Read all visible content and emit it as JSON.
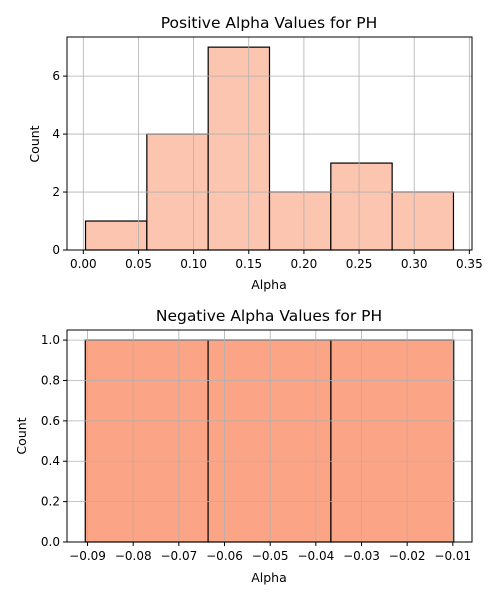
{
  "chart_data": [
    {
      "type": "bar",
      "title": "Positive Alpha Values for PH",
      "xlabel": "Alpha",
      "ylabel": "Count",
      "bin_edges": [
        0.002,
        0.0576,
        0.1132,
        0.1688,
        0.2244,
        0.28,
        0.3356
      ],
      "values": [
        1,
        4,
        7,
        2,
        3,
        2
      ],
      "xlim": [
        -0.0148,
        0.3524
      ],
      "ylim": [
        0,
        7.35
      ],
      "xticks": [
        0.0,
        0.05,
        0.1,
        0.15,
        0.2,
        0.25,
        0.3,
        0.35
      ],
      "xtick_labels": [
        "0.00",
        "0.05",
        "0.10",
        "0.15",
        "0.20",
        "0.25",
        "0.30",
        "0.35"
      ],
      "yticks": [
        0,
        2,
        4,
        6
      ],
      "ytick_labels": [
        "0",
        "2",
        "4",
        "6"
      ],
      "grid": true,
      "bar_color": "#fcc5b0",
      "edge_color": "#000000"
    },
    {
      "type": "bar",
      "title": "Negative Alpha Values for PH",
      "xlabel": "Alpha",
      "ylabel": "Count",
      "bin_edges": [
        -0.0905,
        -0.0636,
        -0.0367,
        -0.0098
      ],
      "values": [
        1,
        1,
        1
      ],
      "xlim": [
        -0.0945,
        -0.0058
      ],
      "ylim": [
        0,
        1.05
      ],
      "xticks": [
        -0.09,
        -0.08,
        -0.07,
        -0.06,
        -0.05,
        -0.04,
        -0.03,
        -0.02,
        -0.01
      ],
      "xtick_labels": [
        "−0.09",
        "−0.08",
        "−0.07",
        "−0.06",
        "−0.05",
        "−0.04",
        "−0.03",
        "−0.02",
        "−0.01"
      ],
      "yticks": [
        0.0,
        0.2,
        0.4,
        0.6,
        0.8,
        1.0
      ],
      "ytick_labels": [
        "0.0",
        "0.2",
        "0.4",
        "0.6",
        "0.8",
        "1.0"
      ],
      "grid": true,
      "bar_color": "#fca486",
      "edge_color": "#000000"
    }
  ]
}
